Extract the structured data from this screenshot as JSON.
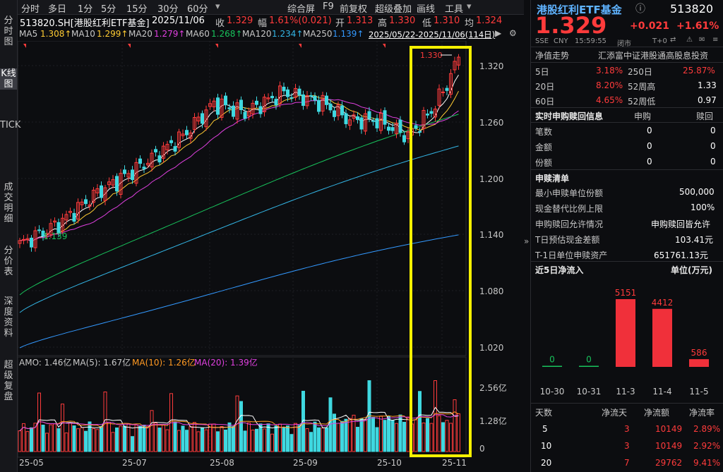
{
  "left_tabs": [
    "分时图",
    "K线图",
    "TICK",
    "成交明细",
    "分价表",
    "深度资料",
    "超级复盘"
  ],
  "toolbar": {
    "periods": [
      "分时",
      "多日",
      "1分",
      "5分",
      "15分",
      "30分",
      "60分"
    ],
    "tools": [
      "综合屏",
      "F9",
      "前复权",
      "超级叠加",
      "画线",
      "工具"
    ]
  },
  "quote": {
    "code": "513820.SH[港股红利ETF基金]",
    "date": "2025/11/06",
    "close_label": "收",
    "close": "1.329",
    "change_label": "幅",
    "change": "1.61%(0.021)",
    "open_label": "开",
    "open": "1.313",
    "high_label": "高",
    "high": "1.330",
    "low_label": "低",
    "low": "1.310",
    "avg_label": "均",
    "avg": "1.324"
  },
  "ma_legend": {
    "items": [
      {
        "label": "MA5",
        "value": "1.308↑",
        "color": "#ffcc33"
      },
      {
        "label": "MA10",
        "value": "1.299↑",
        "color": "#ffcc33"
      },
      {
        "label": "MA20",
        "value": "1.279↑",
        "color": "#e040e0"
      },
      {
        "label": "MA60",
        "value": "1.268↑",
        "color": "#18c35c"
      },
      {
        "label": "MA120",
        "value": "1.234↑",
        "color": "#33b5e5"
      },
      {
        "label": "MA250",
        "value": "1.139↑",
        "color": "#3399ff"
      }
    ],
    "range": "2025/05/22-2025/11/06(114日)"
  },
  "chart": {
    "price_ticks": [
      "1.320",
      "1.260",
      "1.200",
      "1.140",
      "1.080",
      "1.020"
    ],
    "high_marker": "1.330",
    "low_marker": "1.139",
    "vol_legend": {
      "amo": "AMO: 1.46亿",
      "ma5": "MA(5): 1.67亿",
      "ma10": "MA(10): 1.26亿",
      "ma20": "MA(20): 1.39亿"
    },
    "vol_ticks": [
      "2.56亿",
      "1.28亿",
      "0"
    ],
    "date_ticks": [
      "25-05",
      "25-07",
      "25-08",
      "25-09",
      "25-10",
      "25-11"
    ]
  },
  "right": {
    "title": "港股红利ETF基金",
    "code": "513820",
    "price": "1.329",
    "change": "+0.021",
    "change_pct": "+1.61%",
    "meta": [
      "SSE",
      "CNY",
      "15:59:55",
      "闭市"
    ],
    "t0": "T+0",
    "nav_trend_label": "净值走势",
    "index_name": "汇添富中证港股通高股息投资",
    "perf": [
      {
        "l1": "5日",
        "v1": "3.18%",
        "l2": "250日",
        "v2": "25.87%"
      },
      {
        "l1": "20日",
        "v1": "8.20%",
        "l2": "52周高",
        "v2": "1.33"
      },
      {
        "l1": "60日",
        "v1": "4.65%",
        "l2": "52周低",
        "v2": "0.97"
      }
    ],
    "realtime": {
      "title": "实时申购赎回信息",
      "col1": "申购",
      "col2": "赎回",
      "rows": [
        {
          "label": "笔数",
          "a": "0",
          "b": "0"
        },
        {
          "label": "金额",
          "a": "0",
          "b": "0"
        },
        {
          "label": "份额",
          "a": "0",
          "b": "0"
        }
      ]
    },
    "list": {
      "title": "申赎清单",
      "rows": [
        {
          "label": "最小申赎单位份额",
          "value": "500,000"
        },
        {
          "label": "现金替代比例上限",
          "value": "100%"
        },
        {
          "label": "申购赎回允许情况",
          "value": "申购赎回皆允许"
        },
        {
          "label": "T日预估现金差额",
          "value": "103.41元"
        },
        {
          "label": "T-1日单位申赎资产",
          "value": "651761.13元"
        }
      ]
    },
    "flow": {
      "title": "近5日净流入",
      "unit": "单位(万元)",
      "bars": [
        {
          "date": "10-30",
          "value": 0,
          "label": "0"
        },
        {
          "date": "10-31",
          "value": 0,
          "label": "0"
        },
        {
          "date": "11-3",
          "value": 5151,
          "label": "5151"
        },
        {
          "date": "11-4",
          "value": 4412,
          "label": "4412"
        },
        {
          "date": "11-5",
          "value": 586,
          "label": "586"
        }
      ]
    },
    "stats": {
      "headers": [
        "天数",
        "净流天",
        "净流额",
        "净流率"
      ],
      "rows": [
        [
          "5",
          "3",
          "10149",
          "2.89%"
        ],
        [
          "10",
          "3",
          "10149",
          "2.92%"
        ],
        [
          "20",
          "7",
          "29762",
          "9.41%"
        ]
      ]
    }
  }
}
